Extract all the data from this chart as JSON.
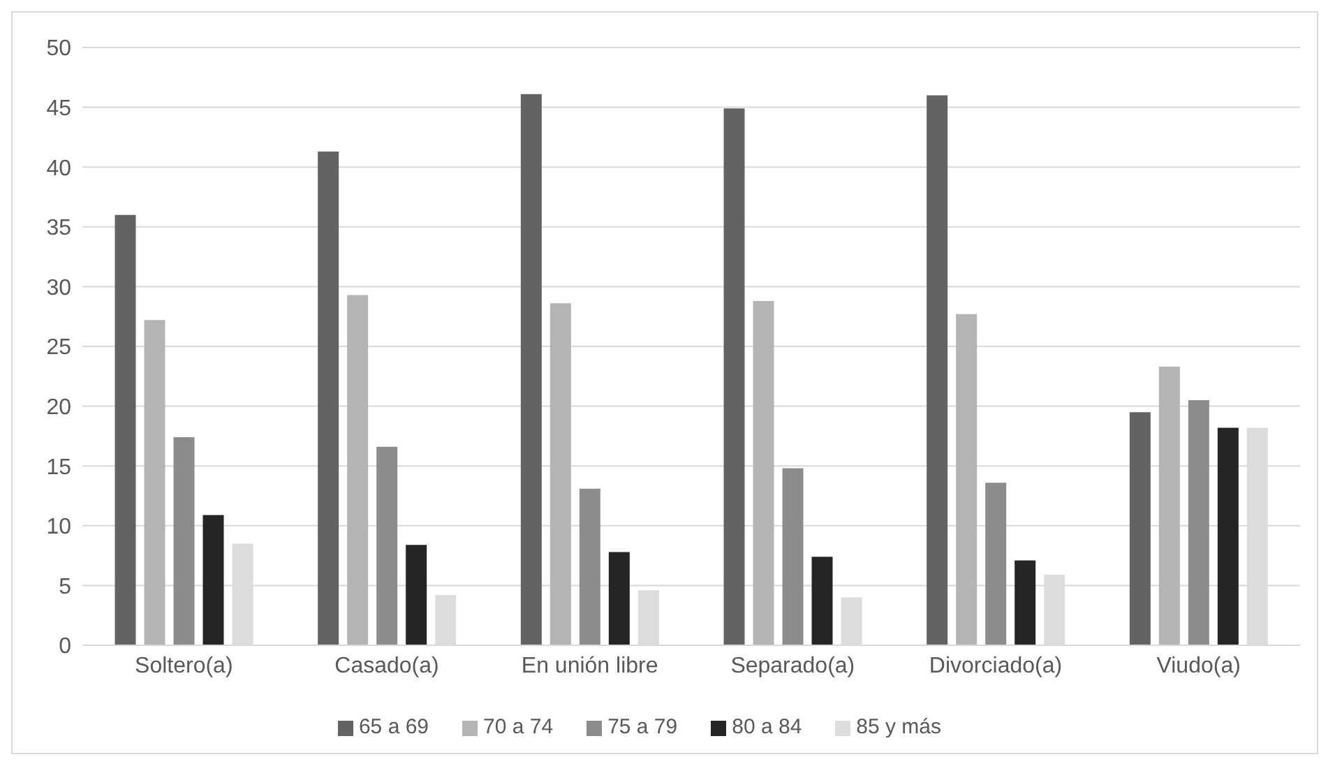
{
  "chart_data": {
    "type": "bar",
    "categories": [
      "Soltero(a)",
      "Casado(a)",
      "En unión libre",
      "Separado(a)",
      "Divorciado(a)",
      "Viudo(a)"
    ],
    "series": [
      {
        "name": "65 a 69",
        "color": "#636363",
        "values": [
          36.0,
          41.3,
          46.1,
          44.9,
          46.0,
          19.5
        ]
      },
      {
        "name": "70 a 74",
        "color": "#b4b4b4",
        "values": [
          27.2,
          29.3,
          28.6,
          28.8,
          27.7,
          23.3
        ]
      },
      {
        "name": "75 a 79",
        "color": "#8c8c8c",
        "values": [
          17.4,
          16.6,
          13.1,
          14.8,
          13.6,
          20.5
        ]
      },
      {
        "name": "80 a 84",
        "color": "#252525",
        "values": [
          10.9,
          8.4,
          7.8,
          7.4,
          7.1,
          18.2
        ]
      },
      {
        "name": "85 y más",
        "color": "#dcdcdc",
        "values": [
          8.5,
          4.2,
          4.6,
          4.0,
          5.9,
          18.2
        ]
      }
    ],
    "ylim": [
      0,
      50
    ],
    "yticks": [
      0,
      5,
      10,
      15,
      20,
      25,
      30,
      35,
      40,
      45,
      50
    ],
    "grid": "y",
    "legend": "bottom"
  }
}
